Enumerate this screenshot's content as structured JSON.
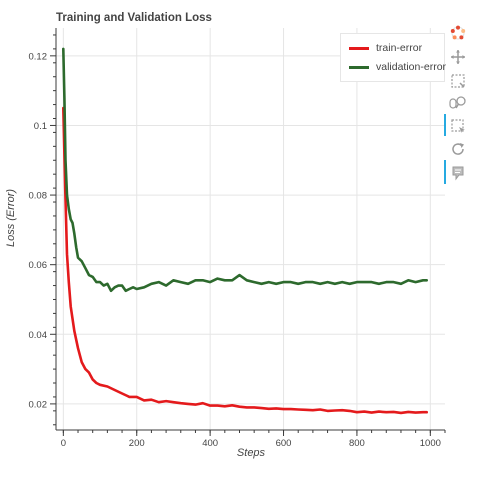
{
  "chart_data": {
    "type": "line",
    "title": "Training and Validation Loss",
    "xlabel": "Steps",
    "ylabel": "Loss (Error)",
    "xlim": [
      -20,
      1040
    ],
    "ylim": [
      0.0125,
      0.128
    ],
    "xticks": [
      "0",
      "200",
      "400",
      "600",
      "800",
      "1000"
    ],
    "yticks": [
      "0.02",
      "0.04",
      "0.06",
      "0.08",
      "0.1",
      "0.12"
    ],
    "grid": true,
    "legend_position": "top-right",
    "series": [
      {
        "name": "train-error",
        "color": "#e41a1c",
        "x": [
          0,
          5,
          10,
          15,
          20,
          30,
          40,
          50,
          60,
          70,
          80,
          90,
          100,
          120,
          140,
          160,
          180,
          200,
          220,
          240,
          260,
          280,
          300,
          320,
          340,
          360,
          380,
          400,
          420,
          440,
          460,
          480,
          500,
          520,
          540,
          560,
          580,
          600,
          620,
          640,
          660,
          680,
          700,
          720,
          740,
          760,
          780,
          800,
          820,
          840,
          860,
          880,
          900,
          920,
          940,
          960,
          980,
          990
        ],
        "y": [
          0.105,
          0.082,
          0.063,
          0.055,
          0.048,
          0.041,
          0.036,
          0.032,
          0.03,
          0.029,
          0.027,
          0.026,
          0.0255,
          0.025,
          0.024,
          0.023,
          0.022,
          0.022,
          0.021,
          0.0212,
          0.0205,
          0.0208,
          0.0205,
          0.0202,
          0.02,
          0.0198,
          0.0202,
          0.0195,
          0.0195,
          0.0193,
          0.0196,
          0.0192,
          0.019,
          0.019,
          0.0188,
          0.0186,
          0.0187,
          0.0185,
          0.0185,
          0.0184,
          0.0183,
          0.0182,
          0.0184,
          0.018,
          0.0181,
          0.0182,
          0.018,
          0.0176,
          0.0178,
          0.0175,
          0.0178,
          0.0176,
          0.0177,
          0.0174,
          0.0177,
          0.0175,
          0.0176,
          0.0176
        ]
      },
      {
        "name": "validation-error",
        "color": "#2d6a2d",
        "x": [
          0,
          3,
          6,
          10,
          15,
          20,
          25,
          30,
          35,
          40,
          50,
          60,
          70,
          80,
          90,
          100,
          110,
          120,
          130,
          140,
          150,
          160,
          170,
          180,
          190,
          200,
          220,
          240,
          260,
          280,
          300,
          320,
          340,
          360,
          380,
          400,
          420,
          440,
          460,
          480,
          500,
          520,
          540,
          560,
          580,
          600,
          620,
          640,
          660,
          680,
          700,
          720,
          740,
          760,
          780,
          800,
          820,
          840,
          860,
          880,
          900,
          920,
          940,
          960,
          980,
          990
        ],
        "y": [
          0.122,
          0.108,
          0.09,
          0.08,
          0.076,
          0.073,
          0.072,
          0.069,
          0.065,
          0.062,
          0.061,
          0.059,
          0.057,
          0.0565,
          0.055,
          0.055,
          0.054,
          0.0545,
          0.0525,
          0.0535,
          0.054,
          0.054,
          0.0525,
          0.053,
          0.0535,
          0.053,
          0.0535,
          0.0545,
          0.055,
          0.054,
          0.0555,
          0.055,
          0.0545,
          0.0555,
          0.0555,
          0.055,
          0.056,
          0.0555,
          0.0555,
          0.057,
          0.0555,
          0.055,
          0.0545,
          0.055,
          0.0545,
          0.055,
          0.055,
          0.0545,
          0.055,
          0.055,
          0.0545,
          0.055,
          0.0545,
          0.055,
          0.0545,
          0.055,
          0.055,
          0.055,
          0.0545,
          0.055,
          0.055,
          0.0545,
          0.0555,
          0.055,
          0.0555,
          0.0555
        ]
      }
    ]
  },
  "toolbar": {
    "tools": [
      "bokeh-logo-icon",
      "pan-icon",
      "box-zoom-icon",
      "wheel-zoom-icon",
      "box-select-icon",
      "reset-icon",
      "hover-icon"
    ]
  }
}
